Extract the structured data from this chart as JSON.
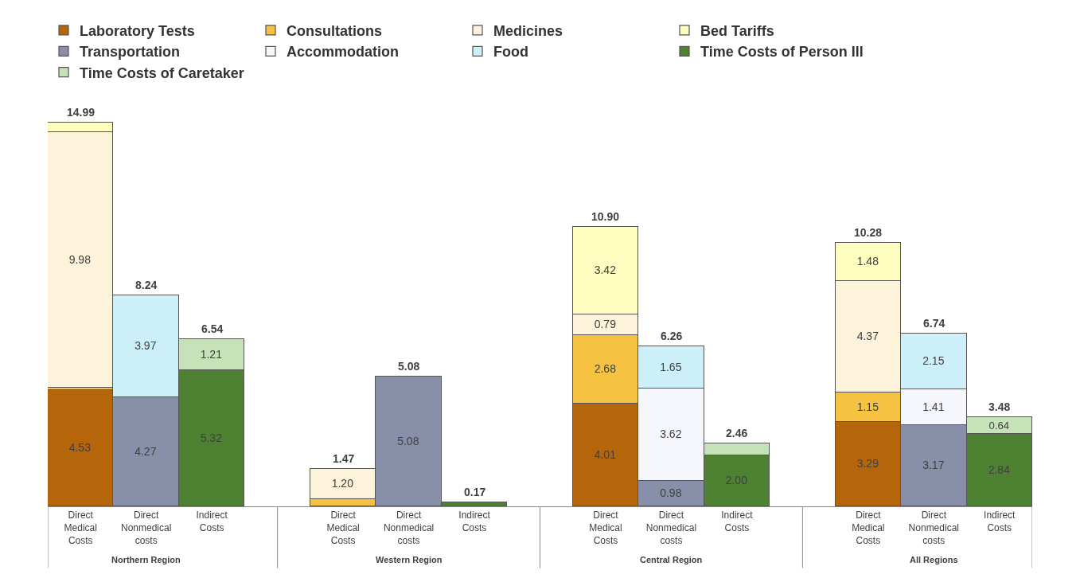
{
  "chart_data": {
    "type": "bar",
    "stacked": true,
    "legend": "top",
    "tick_labels": "x",
    "categories": [
      "Direct Medical Costs",
      "Direct Nonmedical costs",
      "Indirect Costs",
      null,
      "Direct Medical Costs",
      "Direct Nonmedical costs",
      "Indirect Costs",
      null,
      "Direct Medical Costs",
      "Direct Nonmedical costs",
      "Indirect Costs",
      null,
      "Direct Medical Costs",
      "Direct Nonmedical costs",
      "Indirect Costs"
    ],
    "annotations": [
      "Northern Region",
      "Western Region",
      "Central Region",
      "All Regions"
    ],
    "series": [
      {
        "name": "Laboratory Tests",
        "color": "#b5650a",
        "values": [
          4.53,
          null,
          null,
          null,
          null,
          null,
          null,
          null,
          4.01,
          null,
          null,
          null,
          3.29,
          null,
          null
        ],
        "value_labels": [
          "4.53",
          null,
          null,
          null,
          null,
          null,
          null,
          null,
          "4.01",
          null,
          null,
          null,
          "3.29",
          null,
          null
        ]
      },
      {
        "name": "Consultations",
        "color": "#f5c242",
        "values": [
          0.1,
          null,
          null,
          null,
          0.27,
          null,
          null,
          null,
          2.68,
          null,
          null,
          null,
          1.15,
          null,
          null
        ],
        "value_labels": [
          null,
          null,
          null,
          null,
          null,
          null,
          null,
          null,
          "2.68",
          null,
          null,
          null,
          "1.15",
          null,
          null
        ]
      },
      {
        "name": "Medicines",
        "color": "#fdf3da",
        "values": [
          9.98,
          null,
          null,
          null,
          1.2,
          null,
          null,
          null,
          0.79,
          null,
          null,
          null,
          4.37,
          null,
          null
        ],
        "value_labels": [
          "9.98",
          null,
          null,
          null,
          "1.20",
          null,
          null,
          null,
          "0.79",
          null,
          null,
          null,
          "4.37",
          null,
          null
        ]
      },
      {
        "name": "Bed Tariffs",
        "color": "#fefdc0",
        "values": [
          0.38,
          null,
          null,
          null,
          null,
          null,
          null,
          null,
          3.42,
          null,
          null,
          null,
          1.48,
          null,
          null
        ],
        "value_labels": [
          null,
          null,
          null,
          null,
          null,
          null,
          null,
          null,
          "3.42",
          null,
          null,
          null,
          "1.48",
          null,
          null
        ]
      },
      {
        "name": "Transportation",
        "color": "#8790a8",
        "values": [
          null,
          4.27,
          null,
          null,
          null,
          5.08,
          null,
          null,
          null,
          0.98,
          null,
          null,
          null,
          3.17,
          null
        ],
        "value_labels": [
          null,
          "4.27",
          null,
          null,
          null,
          "5.08",
          null,
          null,
          null,
          "0.98",
          null,
          null,
          null,
          "3.17",
          null
        ]
      },
      {
        "name": "Accommodation",
        "color": "#f5f7fd",
        "values": [
          null,
          null,
          null,
          null,
          null,
          null,
          null,
          null,
          null,
          3.62,
          null,
          null,
          null,
          1.41,
          null
        ],
        "value_labels": [
          null,
          null,
          null,
          null,
          null,
          null,
          null,
          null,
          null,
          "3.62",
          null,
          null,
          null,
          "1.41",
          null
        ]
      },
      {
        "name": "Food",
        "color": "#cdeffa",
        "values": [
          null,
          3.97,
          null,
          null,
          null,
          null,
          null,
          null,
          null,
          1.65,
          null,
          null,
          null,
          2.15,
          null
        ],
        "value_labels": [
          null,
          "3.97",
          null,
          null,
          null,
          null,
          null,
          null,
          null,
          "1.65",
          null,
          null,
          null,
          "2.15",
          null
        ]
      },
      {
        "name": "Time Costs of Person Ill",
        "color": "#4f8133",
        "values": [
          null,
          null,
          5.32,
          null,
          null,
          null,
          0.17,
          null,
          null,
          null,
          2.0,
          null,
          null,
          null,
          2.84
        ],
        "value_labels": [
          null,
          null,
          "5.32",
          null,
          null,
          null,
          null,
          null,
          null,
          null,
          "2.00",
          null,
          null,
          null,
          "2.84"
        ]
      },
      {
        "name": "Time Costs of Caretaker",
        "color": "#c6e2b8",
        "values": [
          null,
          null,
          1.21,
          null,
          null,
          null,
          null,
          null,
          null,
          null,
          0.46,
          null,
          null,
          null,
          0.64
        ],
        "value_labels": [
          null,
          null,
          "1.21",
          null,
          null,
          null,
          null,
          null,
          null,
          null,
          null,
          null,
          null,
          null,
          "0.64"
        ]
      }
    ],
    "totals": [
      "14.99",
      "8.24",
      "6.54",
      null,
      "1.47",
      "5.08",
      "0.17",
      null,
      "10.90",
      "6.26",
      "2.46",
      null,
      "10.28",
      "6.74",
      "3.48"
    ]
  }
}
